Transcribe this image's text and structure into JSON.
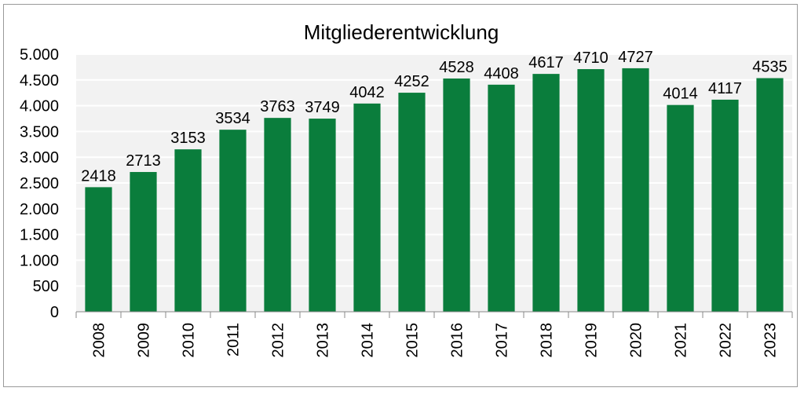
{
  "chart_data": {
    "type": "bar",
    "title": "Mitgliederentwicklung",
    "xlabel": "",
    "ylabel": "",
    "categories": [
      "2008",
      "2009",
      "2010",
      "2011",
      "2012",
      "2013",
      "2014",
      "2015",
      "2016",
      "2017",
      "2018",
      "2019",
      "2020",
      "2021",
      "2022",
      "2023"
    ],
    "values": [
      2418,
      2713,
      3153,
      3534,
      3763,
      3749,
      4042,
      4252,
      4528,
      4408,
      4617,
      4710,
      4727,
      4014,
      4117,
      4535
    ],
    "data_labels": [
      "2418",
      "2713",
      "3153",
      "3534",
      "3763",
      "3749",
      "4042",
      "4252",
      "4528",
      "4408",
      "4617",
      "4710",
      "4727",
      "4014",
      "4117",
      "4535"
    ],
    "ylim": [
      0,
      5000
    ],
    "y_ticks": [
      0,
      500,
      1000,
      1500,
      2000,
      2500,
      3000,
      3500,
      4000,
      4500,
      5000
    ],
    "y_tick_labels": [
      "0",
      "500",
      "1.000",
      "1.500",
      "2.000",
      "2.500",
      "3.000",
      "3.500",
      "4.000",
      "4.500",
      "5.000"
    ],
    "grid": true,
    "legend": "none",
    "bar_color": "#0a7d3c",
    "plot_background": "#f2f2f2",
    "grid_color": "#ffffff"
  }
}
